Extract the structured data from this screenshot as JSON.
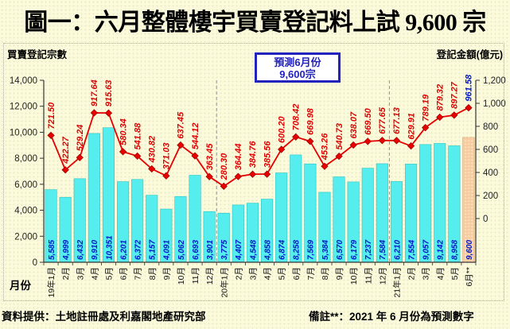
{
  "title": "圖一：六月整體樓宇買賣登記料上試 9,600 宗",
  "footer": {
    "source": "資料提供：土地註冊處及利嘉閣地產研究部",
    "note": "備註**：2021 年 6 月份為預測數字"
  },
  "chart_data": {
    "type": "bar+line",
    "title": "圖一：六月整體樓宇買賣登記料上試 9,600 宗",
    "annotation": {
      "line1": "預測6月份",
      "line2": "9,600宗"
    },
    "left_axis": {
      "title": "買賣登記宗數",
      "min": 0,
      "max": 14000,
      "step": 2000,
      "tick_labels": [
        "14,000",
        "12,000",
        "10,000",
        "8,000",
        "6,000",
        "4,000",
        "2,000",
        "0"
      ]
    },
    "right_axis": {
      "title": "登記金額(億元)",
      "min": 0,
      "max": 1200,
      "step": 200,
      "tick_labels": [
        "1,200",
        "1,000",
        "800",
        "600",
        "400",
        "200",
        "0"
      ]
    },
    "x_axis": {
      "title": "月份",
      "categories": [
        "19年1月",
        "2月",
        "3月",
        "4月",
        "5月",
        "6月",
        "7月",
        "8月",
        "9月",
        "10月",
        "11月",
        "12月",
        "20年1月",
        "2月",
        "3月",
        "4月",
        "5月",
        "6月",
        "7月",
        "8月",
        "9月",
        "10月",
        "11月",
        "12月",
        "21年1月",
        "2月",
        "3月",
        "4月",
        "5月",
        "6月**"
      ]
    },
    "series": [
      {
        "id": "bars",
        "axis": "left",
        "values": [
          5585,
          4999,
          6432,
          9910,
          10351,
          6201,
          6372,
          5157,
          4091,
          5062,
          6693,
          3901,
          3775,
          4407,
          4548,
          4858,
          6874,
          8258,
          7569,
          5384,
          6570,
          6179,
          7237,
          7584,
          6210,
          7554,
          9057,
          9142,
          8958,
          9600
        ],
        "labels": [
          "5,585",
          "4,999",
          "6,432",
          "9,910",
          "10,351",
          "6,201",
          "6,372",
          "5,157",
          "4,091",
          "5,062",
          "6,693",
          "3,901",
          "3,775",
          "4,407",
          "4,548",
          "4,858",
          "6,874",
          "8,258",
          "7,569",
          "5,384",
          "6,570",
          "6,179",
          "7,237",
          "7,584",
          "6,210",
          "7,554",
          "9,057",
          "9,142",
          "8,958",
          "9,600"
        ]
      },
      {
        "id": "line",
        "axis": "right",
        "values": [
          721.5,
          422.27,
          529.24,
          917.64,
          915.63,
          580.34,
          541.88,
          430.82,
          371.03,
          637.45,
          544.12,
          363.45,
          280.3,
          364.44,
          384.76,
          385.56,
          600.2,
          708.42,
          669.98,
          453.26,
          540.73,
          638.07,
          669.5,
          677.65,
          677.13,
          629.91,
          789.19,
          879.32,
          897.27,
          961.58
        ],
        "labels": [
          "721.50",
          "422.27",
          "529.24",
          "917.64",
          "915.63",
          "580.34",
          "541.88",
          "430.82",
          "371.03",
          "637.45",
          "544.12",
          "363.45",
          "280.30",
          "364.44",
          "384.76",
          "385.56",
          "600.20",
          "708.42",
          "669.98",
          "453.26",
          "540.73",
          "638.07",
          "669.50",
          "677.65",
          "677.13",
          "629.91",
          "789.19",
          "879.32",
          "897.27",
          "961.58"
        ]
      }
    ],
    "forecast_index": 29,
    "year_separator_after": [
      11,
      23
    ],
    "colors": {
      "bar": "#55EDED",
      "bar_stroke": "#2FC4C4",
      "bar_forecast": "#F6CCA0",
      "bar_forecast_stroke": "#D89B66",
      "bar_label": "#0018C8",
      "line": "#E60000",
      "line_marker_stroke": "#8B0000",
      "line_label": "#DD0000",
      "line_label_forecast": "#0018C8",
      "axis": "#333333",
      "separator": "#909090",
      "annotation_blue": "#2222BE"
    }
  }
}
